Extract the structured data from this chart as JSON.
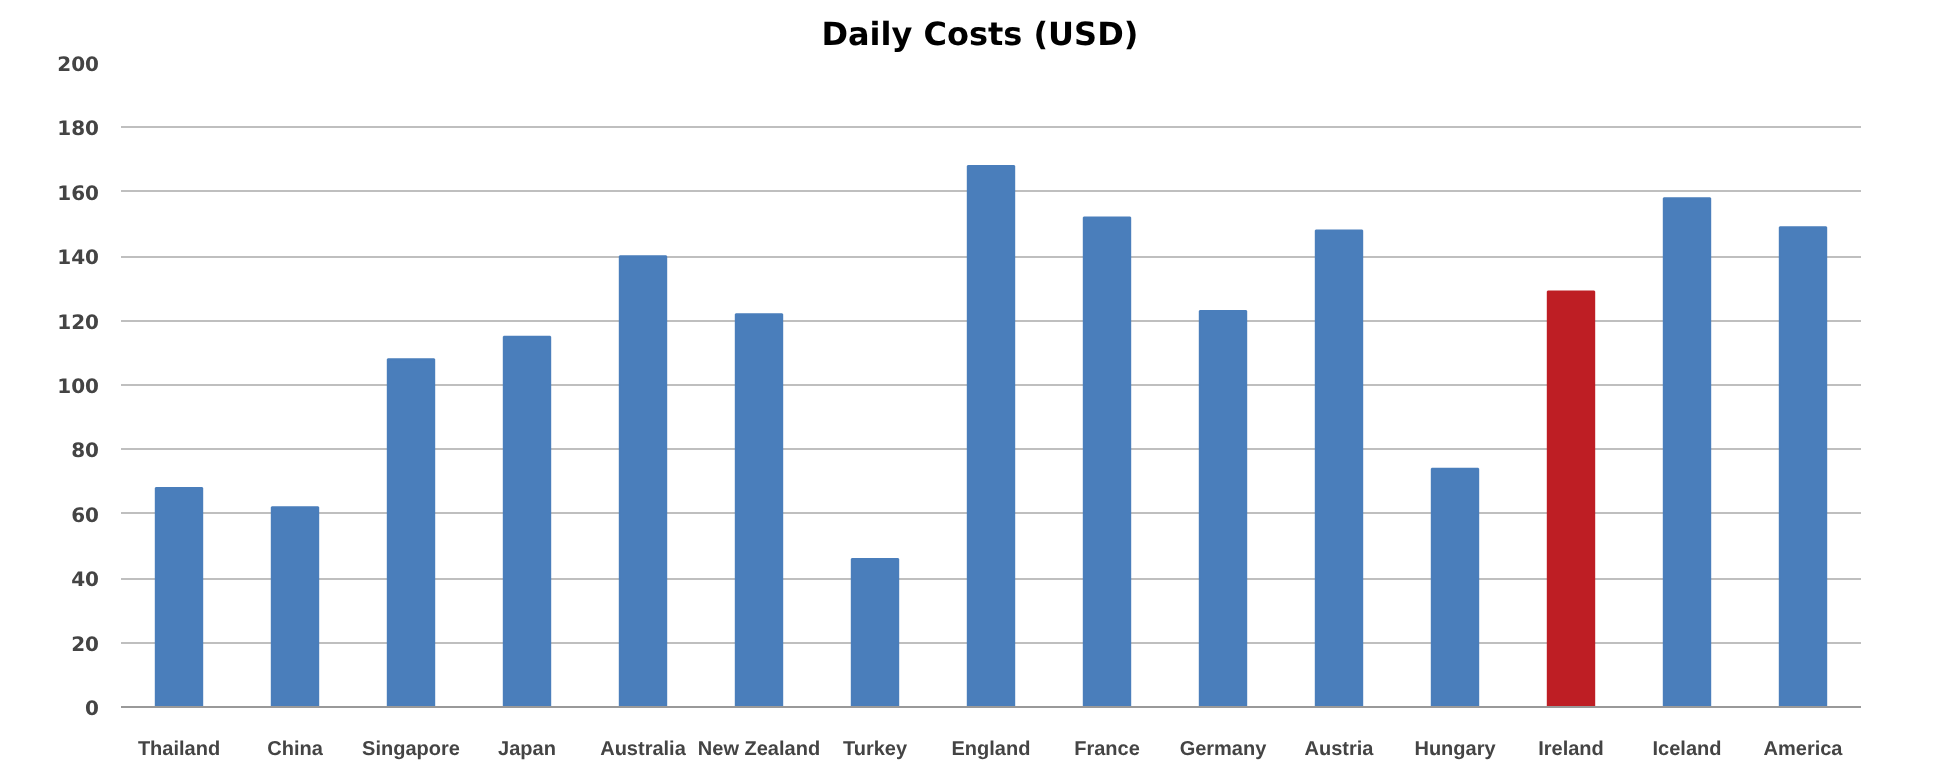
{
  "chart_data": {
    "type": "bar",
    "title": "Daily  Costs  (USD)",
    "categories": [
      "Thailand",
      "China",
      "Singapore",
      "Japan",
      "Australia",
      "New Zealand",
      "Turkey",
      "England",
      "France",
      "Germany",
      "Austria",
      "Hungary",
      "Ireland",
      "Iceland",
      "America"
    ],
    "values": [
      68,
      62,
      108,
      115,
      140,
      122,
      46,
      168,
      152,
      123,
      148,
      74,
      129,
      158,
      149
    ],
    "colors": [
      "#4a7ebb",
      "#4a7ebb",
      "#4a7ebb",
      "#4a7ebb",
      "#4a7ebb",
      "#4a7ebb",
      "#4a7ebb",
      "#4a7ebb",
      "#4a7ebb",
      "#4a7ebb",
      "#4a7ebb",
      "#4a7ebb",
      "#be1e24",
      "#4a7ebb",
      "#4a7ebb"
    ],
    "ylim": [
      0,
      200
    ],
    "yticks": [
      0,
      20,
      40,
      60,
      80,
      100,
      120,
      140,
      160,
      180,
      200
    ],
    "grid": "y"
  }
}
